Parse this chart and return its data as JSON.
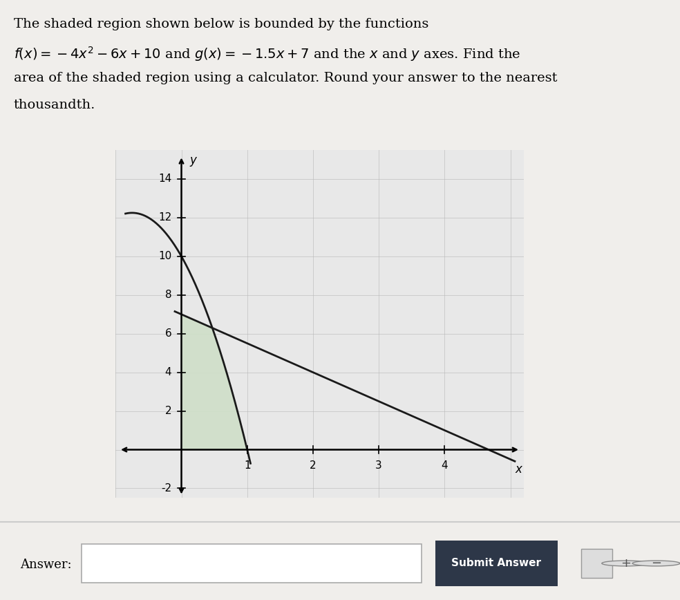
{
  "f_coeffs": [
    -4,
    -6,
    10
  ],
  "g_slope": -1.5,
  "g_intercept": 7,
  "xlim": [
    -1.0,
    5.2
  ],
  "ylim": [
    -2.5,
    15.5
  ],
  "xticks": [
    2,
    3,
    4
  ],
  "yticks": [
    2,
    4,
    6,
    8,
    10,
    12,
    14
  ],
  "xlabel": "x",
  "ylabel": "y",
  "shade_color": "#cfdfc8",
  "shade_alpha": 0.9,
  "line_color": "#1a1a1a",
  "line_width": 2.0,
  "grid_color": "#b8b8b8",
  "grid_alpha": 0.6,
  "bg_color": "#e8e8e8",
  "page_bg": "#f0eeeb",
  "text_line1": "The shaded region shown below is bounded by the functions",
  "text_line2a": "$f(x) = -4x^2 - 6x + 10$",
  "text_line2b": " and ",
  "text_line2c": "$g(x) = -1.5x + 7$",
  "text_line2d": " and the $x$ and $y$ axes. Find the",
  "text_line3": "area of the shaded region using a calculator. Round your answer to the nearest",
  "text_line4": "thousandth.",
  "answer_label": "Answer:",
  "submit_label": "Submit Answer",
  "submit_bg": "#2d3748",
  "fontsize_text": 14,
  "fontsize_tick": 11
}
